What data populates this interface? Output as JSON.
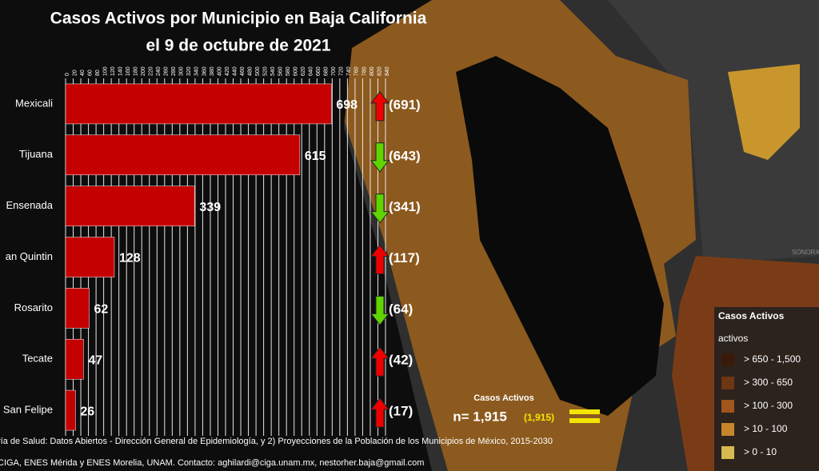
{
  "chart_data": {
    "type": "bar",
    "title": "Casos Activos por Municipio en Baja California",
    "subtitle": "el 9 de octubre de 2021",
    "categories": [
      "Mexicali",
      "Tijuana",
      "Ensenada",
      "an Quintin",
      "Rosarito",
      "Tecate",
      "San Felipe"
    ],
    "values": [
      698,
      615,
      339,
      128,
      62,
      47,
      26
    ],
    "previous_values": [
      691,
      643,
      341,
      117,
      64,
      42,
      17
    ],
    "previous_value_labels": [
      "(691)",
      "(643)",
      "(341)",
      "(117)",
      "(64)",
      "(42)",
      "(17)"
    ],
    "color": "#c40000",
    "up_color": "#ee0000",
    "down_color": "#5fd400",
    "same_color": "#f2e600",
    "xlim": [
      0,
      840
    ],
    "xticks": [
      0,
      20,
      40,
      60,
      80,
      100,
      120,
      140,
      160,
      180,
      200,
      220,
      240,
      260,
      280,
      300,
      320,
      340,
      360,
      380,
      400,
      420,
      440,
      460,
      480,
      500,
      520,
      540,
      560,
      580,
      600,
      620,
      640,
      660,
      680,
      700,
      720,
      740,
      760,
      780,
      800,
      820,
      840
    ],
    "grid": true,
    "total_title": "Casos Activos",
    "total": 1915,
    "total_label": "n= 1,915",
    "previous_total": 1915,
    "previous_total_label": "(1,915)",
    "legend": {
      "title": "Casos Activos",
      "subtitle": "activos",
      "entries": [
        {
          "label": "> 650 - 1,500",
          "color": "#3a1a08"
        },
        {
          "label": "> 300 - 650",
          "color": "#6e3612"
        },
        {
          "label": "> 100 - 300",
          "color": "#a0561c"
        },
        {
          "label": "> 10 - 100",
          "color": "#c8862c"
        },
        {
          "label": "> 0 - 10",
          "color": "#d8b850"
        }
      ]
    },
    "source": "ría de Salud: Datos Abiertos - Dirección General de Epidemiología, y 2) Proyecciones de la Población de los Municipios de México, 2015-2030",
    "credits": "CIGA, ENES Mérida y ENES Morelia, UNAM. Contacto: aghilardi@ciga.unam.mx, nestorher.baja@gmail.com",
    "map_label": "SONORA"
  }
}
